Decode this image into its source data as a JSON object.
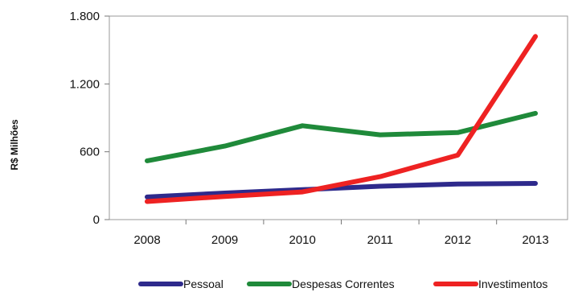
{
  "chart_data": {
    "type": "line",
    "title": "",
    "xlabel": "",
    "ylabel": "R$ Milhões",
    "categories": [
      "2008",
      "2009",
      "2010",
      "2011",
      "2012",
      "2013"
    ],
    "ylim": [
      0,
      1800
    ],
    "yticks": [
      0,
      600,
      1200,
      1800
    ],
    "ytick_labels": [
      "0",
      "600",
      "1.200",
      "1.800"
    ],
    "grid": false,
    "legend_position": "bottom",
    "series": [
      {
        "name": "Pessoal",
        "color": "#2e2a8c",
        "values": [
          200,
          235,
          265,
          295,
          315,
          320
        ]
      },
      {
        "name": "Despesas Correntes",
        "color": "#1f8a3a",
        "values": [
          520,
          650,
          830,
          750,
          770,
          940
        ]
      },
      {
        "name": "Investimentos",
        "color": "#ee2222",
        "values": [
          160,
          205,
          245,
          380,
          570,
          1620
        ]
      }
    ]
  }
}
